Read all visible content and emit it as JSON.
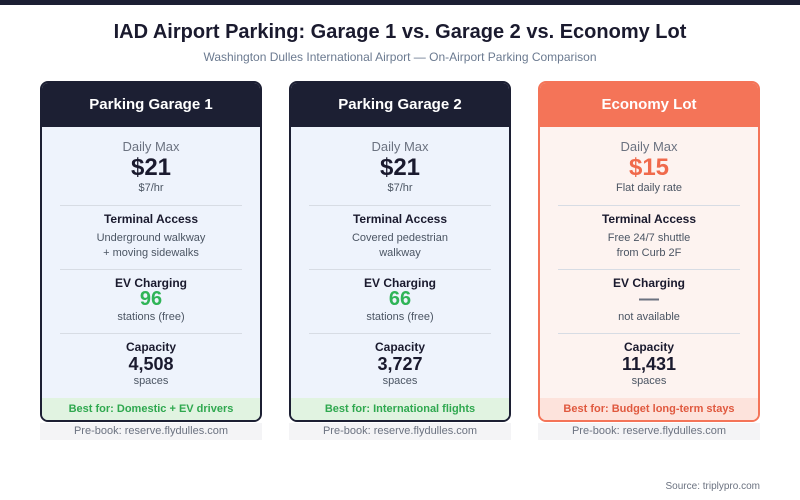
{
  "header": {
    "title": "IAD Airport Parking: Garage 1 vs. Garage 2 vs. Economy Lot",
    "subtitle": "Washington Dulles International Airport — On-Airport Parking Comparison"
  },
  "cards": [
    {
      "name": "Parking Garage 1",
      "price_label": "Daily Max",
      "price": "$21",
      "rate": "$7/hr",
      "access_label": "Terminal Access",
      "access": [
        "Underground walkway",
        "+ moving sidewalks"
      ],
      "ev_label": "EV Charging",
      "ev_value": "96",
      "ev_note": "stations (free)",
      "capacity_label": "Capacity",
      "capacity": "4,508",
      "capacity_unit": "spaces",
      "best_for": "Best for: Domestic + EV drivers",
      "prebook": "Pre-book: reserve.flydulles.com"
    },
    {
      "name": "Parking Garage 2",
      "price_label": "Daily Max",
      "price": "$21",
      "rate": "$7/hr",
      "access_label": "Terminal Access",
      "access": [
        "Covered pedestrian",
        "walkway"
      ],
      "ev_label": "EV Charging",
      "ev_value": "66",
      "ev_note": "stations (free)",
      "capacity_label": "Capacity",
      "capacity": "3,727",
      "capacity_unit": "spaces",
      "best_for": "Best for: International flights",
      "prebook": "Pre-book: reserve.flydulles.com"
    },
    {
      "name": "Economy Lot",
      "price_label": "Daily Max",
      "price": "$15",
      "rate": "Flat daily rate",
      "access_label": "Terminal Access",
      "access": [
        "Free 24/7 shuttle",
        "from Curb 2F"
      ],
      "ev_label": "EV Charging",
      "ev_value": "—",
      "ev_note": "not available",
      "capacity_label": "Capacity",
      "capacity": "11,431",
      "capacity_unit": "spaces",
      "best_for": "Best for: Budget long-term stays",
      "prebook": "Pre-book: reserve.flydulles.com"
    }
  ],
  "footer": {
    "source": "Source: triplypro.com"
  }
}
